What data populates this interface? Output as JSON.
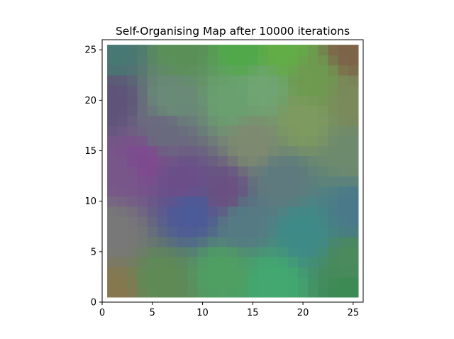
{
  "chart_data": {
    "type": "heatmap",
    "title": "Self-Organising Map after 10000 iterations",
    "xlabel": "",
    "ylabel": "",
    "xlim": [
      0,
      26
    ],
    "ylim": [
      0,
      26
    ],
    "xticks": [
      0,
      5,
      10,
      15,
      20,
      25
    ],
    "yticks": [
      0,
      5,
      10,
      15,
      20,
      25
    ],
    "grid": false,
    "map_size": [
      25,
      25
    ],
    "cell_extent": [
      0.5,
      25.5
    ],
    "color_anchors": [
      {
        "x": 1,
        "y": 1,
        "color": "#85784f"
      },
      {
        "x": 1,
        "y": 7,
        "color": "#787878"
      },
      {
        "x": 2,
        "y": 13,
        "color": "#78568a"
      },
      {
        "x": 4,
        "y": 14,
        "color": "#7d4a8e"
      },
      {
        "x": 1,
        "y": 20,
        "color": "#5f5478"
      },
      {
        "x": 1,
        "y": 25,
        "color": "#487873"
      },
      {
        "x": 8,
        "y": 25,
        "color": "#5a9058"
      },
      {
        "x": 14,
        "y": 25,
        "color": "#50a84a"
      },
      {
        "x": 18,
        "y": 25,
        "color": "#62ad45"
      },
      {
        "x": 25,
        "y": 25,
        "color": "#7d6448"
      },
      {
        "x": 25,
        "y": 20,
        "color": "#7a8a5a"
      },
      {
        "x": 25,
        "y": 15,
        "color": "#6e8a6e"
      },
      {
        "x": 25,
        "y": 9,
        "color": "#4a7a8a"
      },
      {
        "x": 25,
        "y": 4,
        "color": "#4a8a5c"
      },
      {
        "x": 25,
        "y": 1,
        "color": "#3c8a54"
      },
      {
        "x": 17,
        "y": 2,
        "color": "#42a870"
      },
      {
        "x": 12,
        "y": 3,
        "color": "#4f9f62"
      },
      {
        "x": 6,
        "y": 2,
        "color": "#5f8a56"
      },
      {
        "x": 9,
        "y": 9,
        "color": "#4b5a98"
      },
      {
        "x": 12,
        "y": 11,
        "color": "#6a5082"
      },
      {
        "x": 8,
        "y": 12,
        "color": "#6b4e88"
      },
      {
        "x": 14,
        "y": 8,
        "color": "#557a84"
      },
      {
        "x": 20,
        "y": 7,
        "color": "#3e8a88"
      },
      {
        "x": 18,
        "y": 12,
        "color": "#5e7a7e"
      },
      {
        "x": 15,
        "y": 16,
        "color": "#7e8a70"
      },
      {
        "x": 13,
        "y": 20,
        "color": "#6aa070"
      },
      {
        "x": 16,
        "y": 21,
        "color": "#70a472"
      },
      {
        "x": 7,
        "y": 20,
        "color": "#6a8a78"
      },
      {
        "x": 6,
        "y": 17,
        "color": "#6a6a7e"
      },
      {
        "x": 20,
        "y": 18,
        "color": "#7e9a60"
      },
      {
        "x": 21,
        "y": 22,
        "color": "#6e9a50"
      }
    ]
  }
}
